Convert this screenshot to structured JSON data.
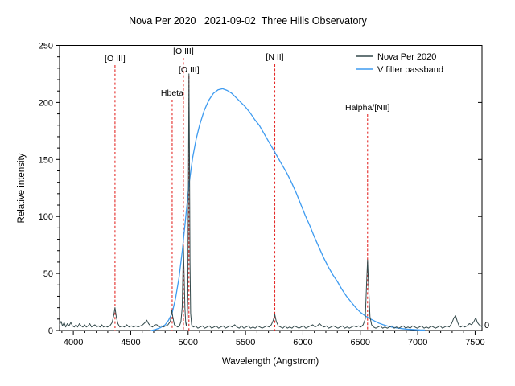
{
  "title": "Nova Per 2020   2021-09-02  Three Hills Observatory",
  "chart_data": {
    "type": "line",
    "title": "Nova Per 2020   2021-09-02  Three Hills Observatory",
    "xlabel": "Wavelength (Angstrom)",
    "ylabel": "Relative intensity",
    "xlim": [
      3880,
      7560
    ],
    "ylim": [
      0,
      250
    ],
    "x_ticks_major": [
      4000,
      4500,
      5000,
      5500,
      6000,
      6500,
      7000,
      7500
    ],
    "x_minor_step": 100,
    "y_ticks_major": [
      0,
      50,
      100,
      150,
      200,
      250
    ],
    "y_minor_step": 10,
    "right_axis_label": "0",
    "grid": false,
    "legend_position": "top-right",
    "axis_color": "#000000",
    "annotation_color": "#E42A28",
    "legend": [
      {
        "name": "Nova Per 2020",
        "color": "#33494B"
      },
      {
        "name": "V filter passband",
        "color": "#3E9BF0"
      }
    ],
    "annotations": [
      {
        "label": "[O III]",
        "wavelength": 4363,
        "label_y": 76,
        "line_top": 81
      },
      {
        "label": "Hbeta",
        "wavelength": 4861,
        "label_y": 119,
        "line_top": 124
      },
      {
        "label": "[O III]",
        "wavelength": 4959,
        "label_y": 67,
        "line_top": 72
      },
      {
        "label": "[O III]",
        "wavelength": 5007,
        "label_y": 90,
        "line_top": 95
      },
      {
        "label": "[N II]",
        "wavelength": 5755,
        "label_y": 74,
        "line_top": 80
      },
      {
        "label": "Halpha/[NII]",
        "wavelength": 6563,
        "label_y": 137,
        "line_top": 142
      }
    ],
    "series": [
      {
        "name": "Nova Per 2020",
        "color": "#33494B",
        "width": 1,
        "points": [
          [
            3880,
            5
          ],
          [
            3893,
            8
          ],
          [
            3905,
            4
          ],
          [
            3920,
            7
          ],
          [
            3933,
            3
          ],
          [
            3948,
            6
          ],
          [
            3962,
            4
          ],
          [
            3978,
            7
          ],
          [
            3993,
            4
          ],
          [
            4008,
            3
          ],
          [
            4023,
            5
          ],
          [
            4038,
            3
          ],
          [
            4053,
            6
          ],
          [
            4068,
            4
          ],
          [
            4083,
            3
          ],
          [
            4098,
            5
          ],
          [
            4113,
            3
          ],
          [
            4128,
            4
          ],
          [
            4143,
            6
          ],
          [
            4158,
            3
          ],
          [
            4173,
            4
          ],
          [
            4188,
            5
          ],
          [
            4203,
            3
          ],
          [
            4218,
            4
          ],
          [
            4233,
            3
          ],
          [
            4248,
            5
          ],
          [
            4263,
            3
          ],
          [
            4278,
            4
          ],
          [
            4298,
            3
          ],
          [
            4318,
            4
          ],
          [
            4338,
            7
          ],
          [
            4352,
            13
          ],
          [
            4363,
            20
          ],
          [
            4374,
            12
          ],
          [
            4388,
            6
          ],
          [
            4405,
            3
          ],
          [
            4425,
            4
          ],
          [
            4445,
            3
          ],
          [
            4465,
            5
          ],
          [
            4485,
            3
          ],
          [
            4505,
            4
          ],
          [
            4525,
            3
          ],
          [
            4545,
            4
          ],
          [
            4565,
            3
          ],
          [
            4585,
            4
          ],
          [
            4605,
            5
          ],
          [
            4625,
            7
          ],
          [
            4640,
            9
          ],
          [
            4655,
            6
          ],
          [
            4672,
            4
          ],
          [
            4690,
            3
          ],
          [
            4710,
            5
          ],
          [
            4728,
            5
          ],
          [
            4745,
            3
          ],
          [
            4765,
            4
          ],
          [
            4785,
            3
          ],
          [
            4805,
            4
          ],
          [
            4825,
            5
          ],
          [
            4845,
            8
          ],
          [
            4857,
            18
          ],
          [
            4866,
            12
          ],
          [
            4880,
            5
          ],
          [
            4895,
            4
          ],
          [
            4910,
            3
          ],
          [
            4925,
            4
          ],
          [
            4938,
            8
          ],
          [
            4948,
            20
          ],
          [
            4954,
            48
          ],
          [
            4959,
            74
          ],
          [
            4965,
            50
          ],
          [
            4972,
            20
          ],
          [
            4979,
            7
          ],
          [
            4985,
            4
          ],
          [
            4991,
            8
          ],
          [
            4997,
            30
          ],
          [
            5002,
            120
          ],
          [
            5007,
            225
          ],
          [
            5012,
            150
          ],
          [
            5016,
            60
          ],
          [
            5022,
            15
          ],
          [
            5030,
            5
          ],
          [
            5045,
            3
          ],
          [
            5065,
            4
          ],
          [
            5085,
            2
          ],
          [
            5105,
            3
          ],
          [
            5125,
            4
          ],
          [
            5145,
            2
          ],
          [
            5165,
            3
          ],
          [
            5185,
            4
          ],
          [
            5205,
            2
          ],
          [
            5225,
            3
          ],
          [
            5245,
            4
          ],
          [
            5265,
            2
          ],
          [
            5285,
            3
          ],
          [
            5305,
            4
          ],
          [
            5325,
            2
          ],
          [
            5345,
            3
          ],
          [
            5365,
            4
          ],
          [
            5385,
            3
          ],
          [
            5405,
            5
          ],
          [
            5425,
            3
          ],
          [
            5445,
            2
          ],
          [
            5465,
            4
          ],
          [
            5485,
            2
          ],
          [
            5505,
            3
          ],
          [
            5525,
            4
          ],
          [
            5545,
            2
          ],
          [
            5565,
            3
          ],
          [
            5585,
            2
          ],
          [
            5605,
            4
          ],
          [
            5625,
            3
          ],
          [
            5645,
            2
          ],
          [
            5665,
            3
          ],
          [
            5685,
            4
          ],
          [
            5705,
            3
          ],
          [
            5725,
            5
          ],
          [
            5742,
            9
          ],
          [
            5755,
            14
          ],
          [
            5768,
            8
          ],
          [
            5785,
            4
          ],
          [
            5805,
            3
          ],
          [
            5825,
            2
          ],
          [
            5845,
            4
          ],
          [
            5865,
            2
          ],
          [
            5885,
            3
          ],
          [
            5905,
            2
          ],
          [
            5925,
            4
          ],
          [
            5945,
            3
          ],
          [
            5965,
            2
          ],
          [
            5985,
            3
          ],
          [
            6005,
            4
          ],
          [
            6025,
            2
          ],
          [
            6045,
            3
          ],
          [
            6065,
            4
          ],
          [
            6085,
            5
          ],
          [
            6105,
            3
          ],
          [
            6125,
            4
          ],
          [
            6145,
            6
          ],
          [
            6165,
            4
          ],
          [
            6185,
            3
          ],
          [
            6205,
            4
          ],
          [
            6225,
            2
          ],
          [
            6245,
            3
          ],
          [
            6265,
            4
          ],
          [
            6285,
            3
          ],
          [
            6305,
            2
          ],
          [
            6325,
            3
          ],
          [
            6345,
            4
          ],
          [
            6365,
            2
          ],
          [
            6385,
            3
          ],
          [
            6405,
            2
          ],
          [
            6425,
            3
          ],
          [
            6445,
            4
          ],
          [
            6465,
            3
          ],
          [
            6485,
            4
          ],
          [
            6505,
            3
          ],
          [
            6525,
            5
          ],
          [
            6543,
            10
          ],
          [
            6554,
            40
          ],
          [
            6563,
            62
          ],
          [
            6572,
            40
          ],
          [
            6584,
            12
          ],
          [
            6598,
            5
          ],
          [
            6615,
            3
          ],
          [
            6635,
            2
          ],
          [
            6655,
            3
          ],
          [
            6675,
            4
          ],
          [
            6695,
            2
          ],
          [
            6715,
            3
          ],
          [
            6735,
            2
          ],
          [
            6755,
            3
          ],
          [
            6775,
            4
          ],
          [
            6795,
            2
          ],
          [
            6815,
            3
          ],
          [
            6835,
            2
          ],
          [
            6855,
            3
          ],
          [
            6875,
            4
          ],
          [
            6895,
            2
          ],
          [
            6915,
            3
          ],
          [
            6935,
            2
          ],
          [
            6955,
            4
          ],
          [
            6975,
            3
          ],
          [
            6995,
            2
          ],
          [
            7015,
            3
          ],
          [
            7035,
            4
          ],
          [
            7055,
            2
          ],
          [
            7075,
            3
          ],
          [
            7095,
            2
          ],
          [
            7115,
            4
          ],
          [
            7135,
            3
          ],
          [
            7155,
            2
          ],
          [
            7175,
            3
          ],
          [
            7195,
            4
          ],
          [
            7215,
            2
          ],
          [
            7235,
            3
          ],
          [
            7255,
            4
          ],
          [
            7275,
            3
          ],
          [
            7295,
            6
          ],
          [
            7315,
            11
          ],
          [
            7330,
            13
          ],
          [
            7345,
            8
          ],
          [
            7360,
            4
          ],
          [
            7375,
            3
          ],
          [
            7390,
            4
          ],
          [
            7410,
            3
          ],
          [
            7430,
            4
          ],
          [
            7450,
            6
          ],
          [
            7470,
            5
          ],
          [
            7490,
            8
          ],
          [
            7505,
            11
          ],
          [
            7520,
            7
          ],
          [
            7535,
            5
          ],
          [
            7550,
            4
          ],
          [
            7560,
            3
          ]
        ]
      },
      {
        "name": "V filter passband",
        "color": "#3E9BF0",
        "width": 1.3,
        "points": [
          [
            4680,
            0
          ],
          [
            4720,
            1
          ],
          [
            4760,
            2.5
          ],
          [
            4800,
            5
          ],
          [
            4830,
            9
          ],
          [
            4860,
            15
          ],
          [
            4890,
            28
          ],
          [
            4920,
            46
          ],
          [
            4950,
            70
          ],
          [
            4980,
            100
          ],
          [
            5010,
            130
          ],
          [
            5040,
            152
          ],
          [
            5070,
            168
          ],
          [
            5100,
            180
          ],
          [
            5140,
            193
          ],
          [
            5180,
            202
          ],
          [
            5220,
            208
          ],
          [
            5260,
            211
          ],
          [
            5300,
            212
          ],
          [
            5340,
            210.5
          ],
          [
            5380,
            208
          ],
          [
            5420,
            204
          ],
          [
            5460,
            200
          ],
          [
            5500,
            196
          ],
          [
            5540,
            191
          ],
          [
            5580,
            185
          ],
          [
            5620,
            180
          ],
          [
            5660,
            173
          ],
          [
            5700,
            166
          ],
          [
            5740,
            159
          ],
          [
            5780,
            152
          ],
          [
            5820,
            145
          ],
          [
            5860,
            138
          ],
          [
            5900,
            130
          ],
          [
            5940,
            121
          ],
          [
            5980,
            111
          ],
          [
            6020,
            101
          ],
          [
            6060,
            92
          ],
          [
            6100,
            82
          ],
          [
            6140,
            73
          ],
          [
            6180,
            64
          ],
          [
            6220,
            56
          ],
          [
            6260,
            49
          ],
          [
            6300,
            43
          ],
          [
            6340,
            36
          ],
          [
            6380,
            30
          ],
          [
            6420,
            25
          ],
          [
            6460,
            20
          ],
          [
            6500,
            16
          ],
          [
            6540,
            13
          ],
          [
            6580,
            10.5
          ],
          [
            6620,
            8.5
          ],
          [
            6660,
            6.5
          ],
          [
            6700,
            5
          ],
          [
            6740,
            3.8
          ],
          [
            6780,
            2.8
          ],
          [
            6820,
            2.2
          ],
          [
            6860,
            1.6
          ],
          [
            6900,
            1.2
          ],
          [
            6940,
            0.9
          ],
          [
            6980,
            0.7
          ],
          [
            7020,
            0.5
          ],
          [
            7060,
            0.4
          ]
        ]
      }
    ]
  }
}
